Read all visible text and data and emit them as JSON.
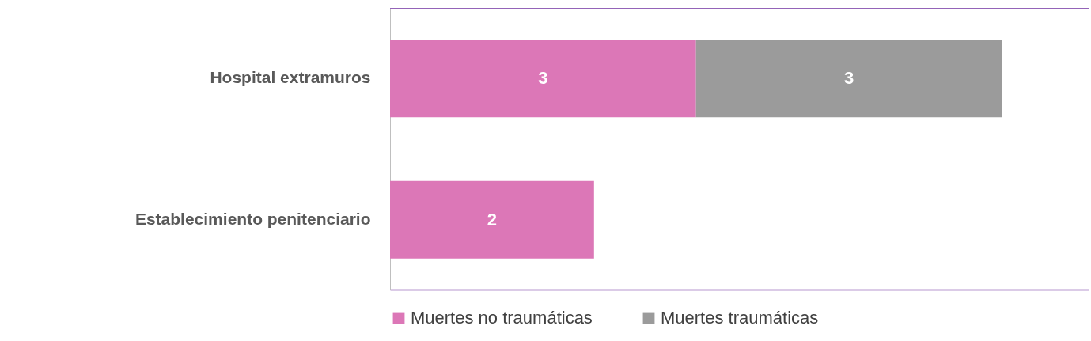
{
  "chart_data": {
    "type": "bar",
    "orientation": "horizontal",
    "stacked": true,
    "data_labels": true,
    "categories": [
      "Hospital extramuros",
      "Establecimiento penitenciario"
    ],
    "series": [
      {
        "name": "Muertes no traumáticas",
        "color": "#dc77b7",
        "values": [
          3,
          2
        ]
      },
      {
        "name": "Muertes traumáticas",
        "color": "#9b9b9b",
        "values": [
          3,
          null
        ]
      }
    ],
    "xlim": [
      0,
      6.85
    ],
    "tick_labels": "y",
    "grid": false,
    "legend": "bottom"
  }
}
